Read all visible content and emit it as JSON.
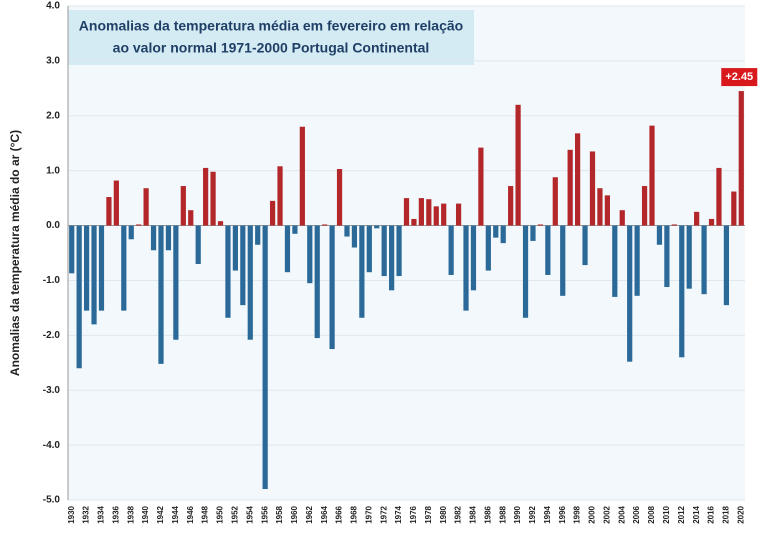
{
  "chart_data": {
    "type": "bar",
    "title": [
      "Anomalias da temperatura média em fevereiro em relação",
      "ao valor normal 1971-2000 Portugal Continental"
    ],
    "y_label": "Anomalias da temperatura média do ar (°C)",
    "categories": [
      "1930",
      null,
      "1932",
      null,
      "1934",
      null,
      "1936",
      null,
      "1938",
      null,
      "1940",
      null,
      "1942",
      null,
      "1944",
      null,
      "1946",
      null,
      "1948",
      null,
      "1950",
      null,
      "1952",
      null,
      "1954",
      null,
      "1956",
      null,
      "1958",
      null,
      "1960",
      null,
      "1962",
      null,
      "1964",
      null,
      "1966",
      null,
      "1968",
      null,
      "1970",
      null,
      "1972",
      null,
      "1974",
      null,
      "1976",
      null,
      "1978",
      null,
      "1980",
      null,
      "1982",
      null,
      "1984",
      null,
      "1986",
      null,
      "1988",
      null,
      "1990",
      null,
      "1992",
      null,
      "1994",
      null,
      "1996",
      null,
      "1998",
      null,
      "2000",
      null,
      "2002",
      null,
      "2004",
      null,
      "2006",
      null,
      "2008",
      null,
      "2010",
      null,
      "2012",
      null,
      "2014",
      null,
      "2016",
      null,
      "2018",
      null,
      "2020"
    ],
    "values": [
      -0.87,
      -2.6,
      -1.55,
      -1.8,
      -1.55,
      0.52,
      0.82,
      -1.55,
      -0.25,
      0.02,
      0.68,
      -0.45,
      -2.52,
      -0.45,
      -2.08,
      0.72,
      0.28,
      -0.7,
      1.05,
      0.98,
      0.08,
      -1.68,
      -0.82,
      -1.45,
      -2.08,
      -0.35,
      -4.8,
      0.45,
      1.08,
      -0.85,
      -0.15,
      1.8,
      -1.05,
      -2.05,
      0.02,
      -2.25,
      1.03,
      -0.2,
      -0.4,
      -1.68,
      -0.85,
      -0.05,
      -0.92,
      -1.18,
      -0.92,
      0.5,
      0.12,
      0.5,
      0.48,
      0.35,
      0.4,
      -0.9,
      0.4,
      -1.55,
      -1.18,
      1.42,
      -0.82,
      -0.22,
      -0.32,
      0.72,
      2.2,
      -1.68,
      -0.28,
      0.02,
      -0.9,
      0.88,
      -1.28,
      1.38,
      1.68,
      -0.72,
      1.35,
      0.68,
      0.55,
      -1.3,
      0.28,
      -2.48,
      -1.28,
      0.72,
      1.82,
      -0.35,
      -1.12,
      0.02,
      -2.4,
      -1.15,
      0.25,
      -1.25,
      0.12,
      1.05,
      -1.45,
      0.62,
      2.45
    ],
    "value_labels": [
      null,
      null,
      null,
      null,
      null,
      null,
      null,
      null,
      null,
      null,
      null,
      null,
      null,
      null,
      null,
      null,
      null,
      null,
      null,
      null,
      null,
      null,
      null,
      null,
      null,
      null,
      null,
      null,
      null,
      null,
      null,
      null,
      null,
      null,
      null,
      null,
      null,
      null,
      null,
      null,
      null,
      null,
      null,
      null,
      null,
      null,
      null,
      null,
      null,
      null,
      null,
      null,
      null,
      null,
      null,
      null,
      null,
      null,
      null,
      null,
      null,
      null,
      null,
      null,
      null,
      null,
      null,
      null,
      null,
      null,
      null,
      null,
      null,
      null,
      null,
      null,
      null,
      null,
      null,
      null,
      null,
      null,
      null,
      null,
      null,
      null,
      null,
      null,
      null,
      null,
      "+2.45"
    ],
    "positive_color": "#b3272a",
    "negative_color": "#2b6a98",
    "ylim": [
      -5,
      4
    ],
    "yticks": [
      {
        "value": -5,
        "label": "-5.0"
      },
      {
        "value": -4,
        "label": "-4.0"
      },
      {
        "value": -3,
        "label": "-3.0"
      },
      {
        "value": -2,
        "label": "-2.0"
      },
      {
        "value": -1,
        "label": "-1.0"
      },
      {
        "value": 0,
        "label": "0.0"
      },
      {
        "value": 1,
        "label": "1.0"
      },
      {
        "value": 2,
        "label": "2.0"
      },
      {
        "value": 3,
        "label": "3.0"
      },
      {
        "value": 4,
        "label": "4.0"
      }
    ],
    "grid": true
  }
}
